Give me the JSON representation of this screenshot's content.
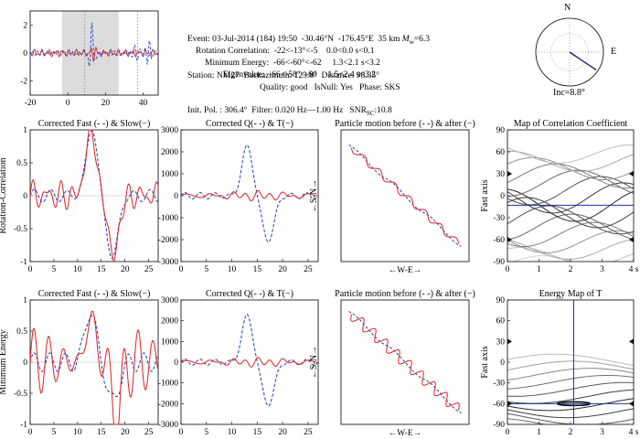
{
  "info": {
    "event": "Event: 03-Jul-2014 (184) 19:50  -30.46°N  -176.45°E  35 km",
    "mw_symbol": "M",
    "mw_sub": "w",
    "mw_value": "=6.3",
    "station": "Station: NM27  Backazimuth: 123.8°  Distance: 98.35°",
    "init": "Init. Pol. : 306.4°  Filter: 0.020 Hz—1.00 Hz   SNR",
    "snr_sub": "SC",
    "snr_value": ":10.8",
    "rot_label": "Rotation Correlation:",
    "rot_range": "-22<-13°<-5",
    "rot_dt": "0.0<0.0 s<0.1",
    "min_label": "Minimum Energy:",
    "min_range": "-66<-60°<-62",
    "min_dt": "1.3<2.1 s<3.2",
    "eig_label": "Eigenvalue:",
    "eig_range": "-66<-58°<-60",
    "eig_dt": "1.5<2.4 s<3.2",
    "quality": "Quality: good",
    "isnull": "IsNull: Yes",
    "phase": "Phase: SKS"
  },
  "compass": {
    "n": "N",
    "e": "E",
    "inc": "Inc=8.8°",
    "azimuth_deg": 123.8
  },
  "colors": {
    "fast": "#1f3fbf",
    "slow": "#e02020",
    "map_line": "#2030a0",
    "shade": "#dcdcdc"
  },
  "chart_data": [
    {
      "type": "line",
      "id": "seismogram",
      "title": "",
      "xlim": [
        -20,
        48
      ],
      "ylim": [
        -3,
        3
      ],
      "xticks": [
        "-20",
        "0",
        "20",
        "40"
      ],
      "yticks": [
        "2",
        "0",
        "-2"
      ],
      "window": [
        -3,
        27
      ],
      "markers": [
        9,
        37
      ]
    },
    {
      "type": "line",
      "id": "rc-fs",
      "title": "Corrected Fast (- -) & Slow(−)",
      "ylabel": "Rotation-Correlation",
      "xlim": [
        0,
        27
      ],
      "ylim": [
        -1,
        1
      ],
      "xticks": [
        "0",
        "5",
        "10",
        "15",
        "20",
        "25"
      ],
      "yticks": [
        "1",
        "0.5",
        "0",
        "-0.5",
        "-1"
      ]
    },
    {
      "type": "line",
      "id": "rc-qt",
      "title": "Corrected Q(- -) & T(−)",
      "xlim": [
        0,
        27
      ],
      "ylim": [
        -3000,
        3000
      ],
      "xticks": [
        "0",
        "5",
        "10",
        "15",
        "20",
        "25"
      ],
      "yticks": [
        "3000",
        "2000",
        "1000",
        "0",
        "-1000",
        "-2000",
        "-3000"
      ]
    },
    {
      "type": "line",
      "id": "rc-pm",
      "title": "Particle motion before (- -) & after (−)",
      "xlabel": "←W-E→",
      "ylabel": "←S-N→"
    },
    {
      "type": "heatmap",
      "id": "rc-map",
      "title": "Map of Correlation Coefficient",
      "ylabel": "Fast axis",
      "xlim": [
        0,
        4
      ],
      "ylim": [
        -90,
        90
      ],
      "xticks": [
        "0",
        "1",
        "2",
        "3",
        "4 s"
      ],
      "yticks": [
        "90",
        "60",
        "30",
        "0",
        "-30",
        "-60",
        "-90"
      ],
      "best_dt": 0.0,
      "best_phi": -13
    },
    {
      "type": "line",
      "id": "me-fs",
      "title": "Corrected Fast (- -) & Slow(−)",
      "ylabel": "Minimum Energy",
      "xlim": [
        0,
        27
      ],
      "ylim": [
        -1,
        1
      ],
      "xticks": [
        "0",
        "5",
        "10",
        "15",
        "20",
        "25"
      ],
      "yticks": [
        "1",
        "0.5",
        "0",
        "-0.5",
        "-1"
      ]
    },
    {
      "type": "line",
      "id": "me-qt",
      "title": "Corrected Q(- -) & T(−)",
      "xlim": [
        0,
        27
      ],
      "ylim": [
        -3000,
        3000
      ],
      "xticks": [
        "0",
        "5",
        "10",
        "15",
        "20",
        "25"
      ],
      "yticks": [
        "3000",
        "2000",
        "1000",
        "0",
        "-1000",
        "-2000",
        "-3000"
      ]
    },
    {
      "type": "line",
      "id": "me-pm",
      "title": "Particle motion before (- -) & after (−)",
      "xlabel": "←W-E→",
      "ylabel": "←S-N→"
    },
    {
      "type": "heatmap",
      "id": "me-map",
      "title": "Energy Map of T",
      "ylabel": "Fast axis",
      "xlim": [
        0,
        4
      ],
      "ylim": [
        -90,
        90
      ],
      "xticks": [
        "0",
        "1",
        "2",
        "3",
        "4 s"
      ],
      "yticks": [
        "90",
        "60",
        "30",
        "0",
        "-30",
        "-60",
        "-90"
      ],
      "best_dt": 2.1,
      "best_phi": -60
    }
  ]
}
